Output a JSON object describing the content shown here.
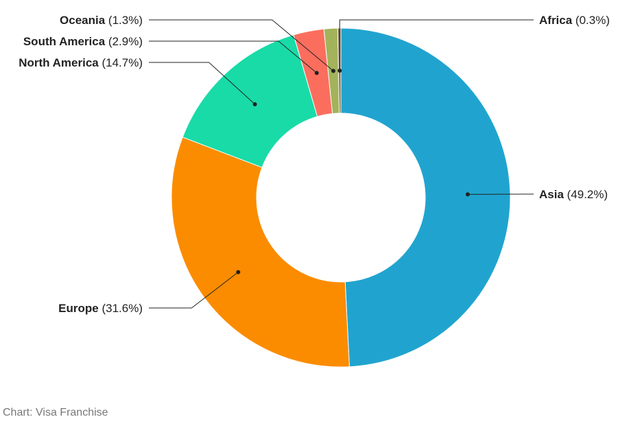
{
  "chart_data": {
    "type": "pie",
    "variant": "donut",
    "start_angle_deg": 0,
    "direction": "clockwise",
    "series": [
      {
        "name": "",
        "slices": [
          {
            "category": "Asia",
            "value": 49.2,
            "label_name": "Asia",
            "label_pct": "(49.2%)",
            "color": "#20a4cf"
          },
          {
            "category": "Europe",
            "value": 31.6,
            "label_name": "Europe",
            "label_pct": "(31.6%)",
            "color": "#fb8c00"
          },
          {
            "category": "North America",
            "value": 14.7,
            "label_name": "North America",
            "label_pct": "(14.7%)",
            "color": "#19dba7"
          },
          {
            "category": "South America",
            "value": 2.9,
            "label_name": "South America",
            "label_pct": "(2.9%)",
            "color": "#fb6e5e"
          },
          {
            "category": "Oceania",
            "value": 1.3,
            "label_name": "Oceania",
            "label_pct": "(1.3%)",
            "color": "#a3b35b"
          },
          {
            "category": "Africa",
            "value": 0.3,
            "label_name": "Africa",
            "label_pct": "(0.3%)",
            "color": "#7a6a52"
          }
        ]
      }
    ],
    "title": "",
    "legend": "none (direct labels with leader lines)"
  },
  "source": "Chart: Visa Franchise"
}
